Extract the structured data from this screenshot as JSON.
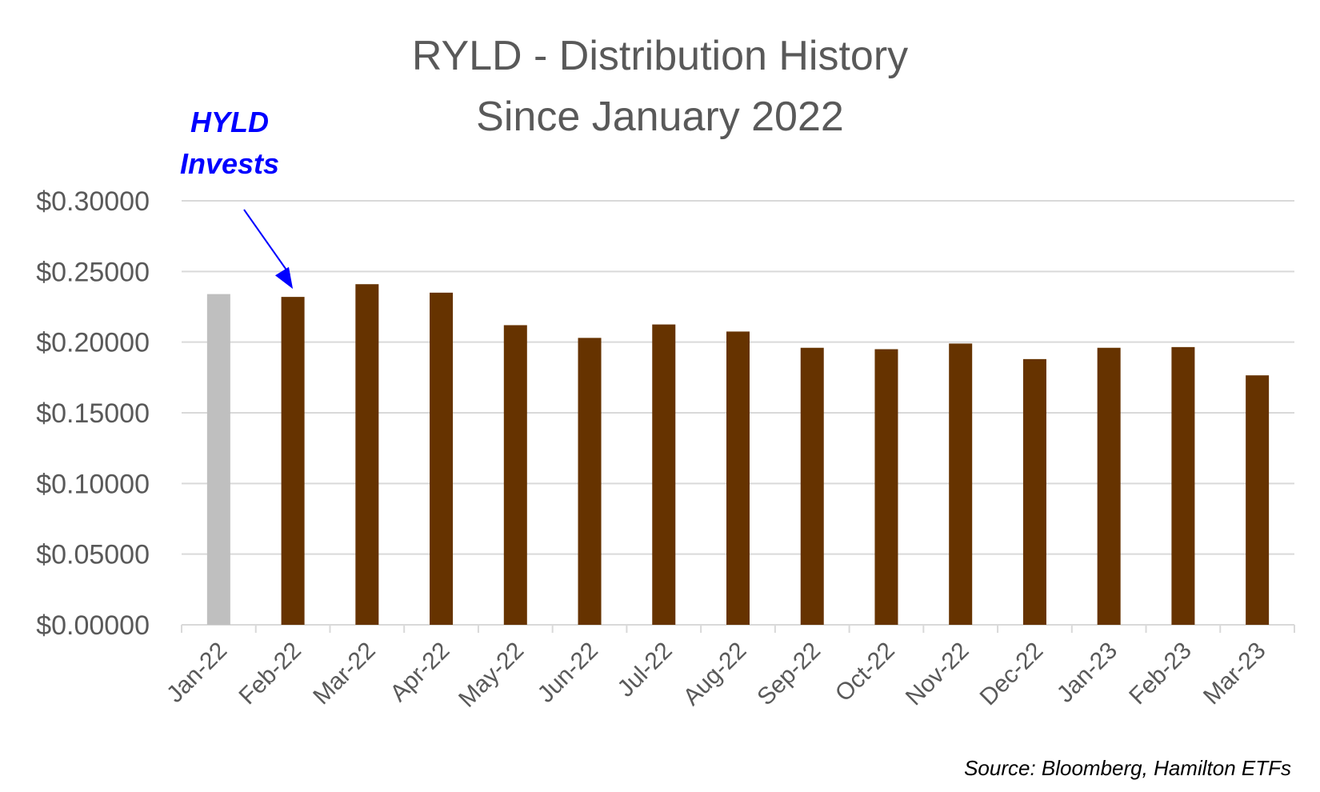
{
  "chart_data": {
    "type": "bar",
    "title": "RYLD - Distribution History",
    "subtitle": "Since January 2022",
    "xlabel": "",
    "ylabel": "",
    "categories": [
      "Jan-22",
      "Feb-22",
      "Mar-22",
      "Apr-22",
      "May-22",
      "Jun-22",
      "Jul-22",
      "Aug-22",
      "Sep-22",
      "Oct-22",
      "Nov-22",
      "Dec-22",
      "Jan-23",
      "Feb-23",
      "Mar-23"
    ],
    "values": [
      0.234,
      0.232,
      0.241,
      0.235,
      0.212,
      0.203,
      0.2125,
      0.2075,
      0.196,
      0.195,
      0.199,
      0.188,
      0.196,
      0.1965,
      0.1765
    ],
    "bar_colors": [
      "#bfbfbf",
      "#663300",
      "#663300",
      "#663300",
      "#663300",
      "#663300",
      "#663300",
      "#663300",
      "#663300",
      "#663300",
      "#663300",
      "#663300",
      "#663300",
      "#663300",
      "#663300"
    ],
    "yticks": [
      "$0.00000",
      "$0.05000",
      "$0.10000",
      "$0.15000",
      "$0.20000",
      "$0.25000",
      "$0.30000"
    ],
    "ylim": [
      0,
      0.3
    ],
    "grid": true,
    "legend": "none",
    "annotation": {
      "line1": "HYLD",
      "line2": "Invests",
      "target_category": "Feb-22",
      "color": "#0000ff"
    },
    "source": "Source: Bloomberg, Hamilton ETFs"
  }
}
